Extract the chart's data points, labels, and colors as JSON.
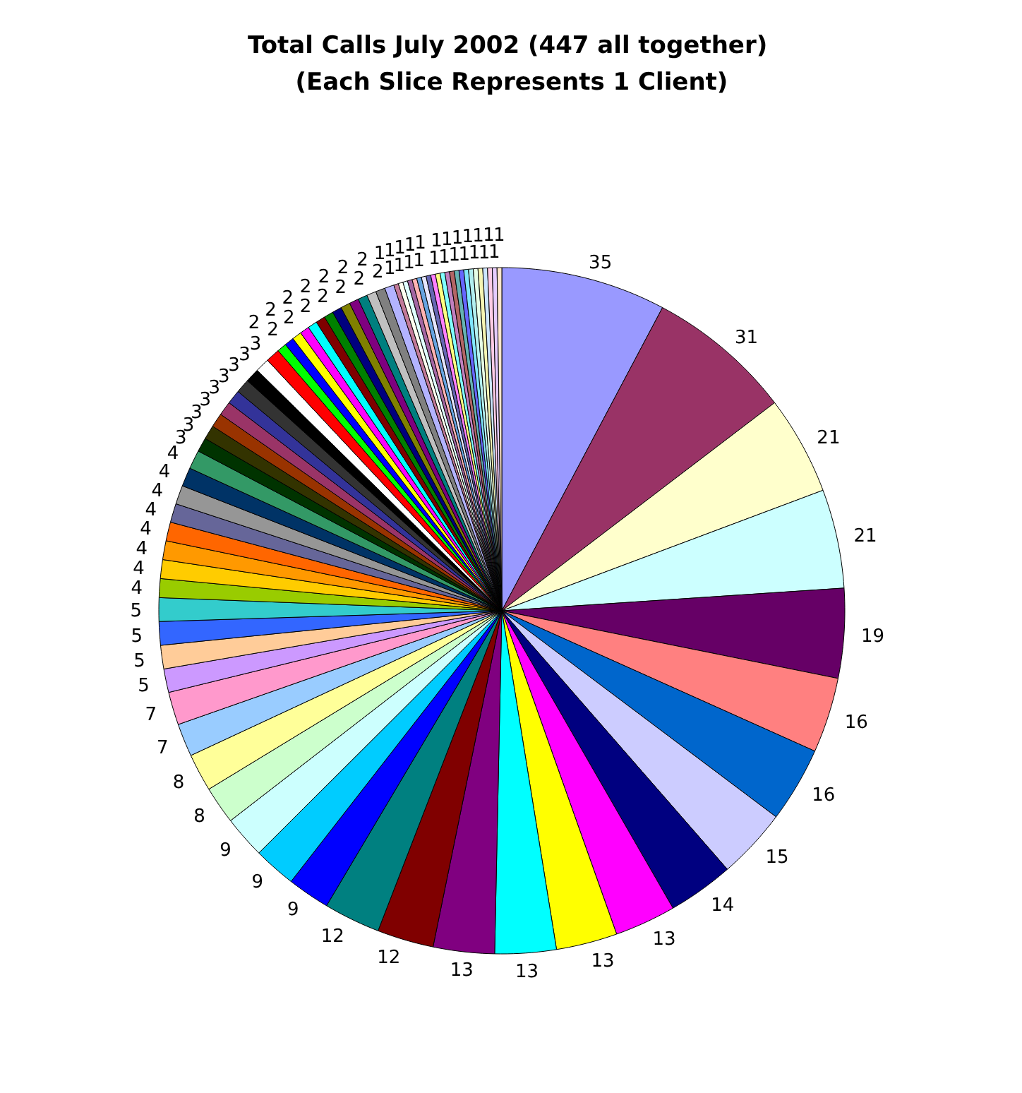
{
  "chart_data": {
    "type": "pie",
    "title": "Total Calls  July 2002 (447 all together)\n(Each Slice Represents 1 Client)",
    "categories": [
      null,
      null,
      null,
      null,
      null,
      null,
      null,
      null,
      null,
      null,
      null,
      null,
      null,
      null,
      null,
      null,
      null,
      null,
      null,
      null,
      null,
      null,
      null,
      null,
      null,
      null,
      null,
      null,
      null,
      null,
      null,
      null,
      null,
      null,
      null,
      null,
      null,
      null,
      null,
      null,
      null,
      null,
      null,
      null,
      null,
      null,
      null,
      null,
      null,
      null,
      null,
      null,
      null,
      null,
      null,
      null,
      null,
      null,
      null,
      null,
      null,
      null,
      null,
      null,
      null,
      null,
      null,
      null,
      null,
      null,
      null,
      null,
      null,
      null,
      null,
      null,
      null,
      null,
      null,
      null
    ],
    "values": [
      35,
      31,
      21,
      21,
      19,
      16,
      16,
      15,
      14,
      13,
      13,
      13,
      13,
      12,
      12,
      9,
      9,
      9,
      8,
      8,
      7,
      7,
      5,
      5,
      5,
      5,
      4,
      4,
      4,
      4,
      4,
      4,
      4,
      4,
      3,
      3,
      3,
      3,
      3,
      3,
      3,
      3,
      3,
      2,
      2,
      2,
      2,
      2,
      2,
      2,
      2,
      2,
      2,
      2,
      2,
      2,
      2,
      1,
      1,
      1,
      1,
      1,
      1,
      1,
      1,
      1,
      1,
      1,
      1,
      1,
      1,
      1,
      1,
      1,
      1,
      1,
      1,
      1,
      1,
      1
    ],
    "colors": [
      "#9999ff",
      "#993366",
      "#ffffcc",
      "#ccffff",
      "#660066",
      "#ff8080",
      "#0066cc",
      "#ccccff",
      "#000080",
      "#ff00ff",
      "#ffff00",
      "#00ffff",
      "#800080",
      "#800000",
      "#008080",
      "#0000ff",
      "#00ccff",
      "#ccfffe",
      "#ccffcc",
      "#ffff99",
      "#99ccff",
      "#ff99cc",
      "#cc99ff",
      "#ffcc99",
      "#3366ff",
      "#33cccc",
      "#99cc00",
      "#ffcc00",
      "#ff9900",
      "#ff6600",
      "#666699",
      "#969696",
      "#003366",
      "#339966",
      "#003300",
      "#333300",
      "#993300",
      "#9a3467",
      "#333399",
      "#333333",
      "#000000",
      "#ffffff",
      "#ff0000",
      "#00ff00",
      "#0000fe",
      "#fefe00",
      "#fe00fe",
      "#00fefe",
      "#7f0000",
      "#008000",
      "#00007f",
      "#808000",
      "#7f007f",
      "#007f7f",
      "#c0c0c0",
      "#808080",
      "#b3b3ff",
      "#c27a99",
      "#fffff0",
      "#e0ffff",
      "#a366a3",
      "#ffb3b3",
      "#66a3e0",
      "#e6e6ff",
      "#6666b3",
      "#ff80ff",
      "#ffff80",
      "#80ffff",
      "#c080c0",
      "#b36666",
      "#66b3b3",
      "#6666ff",
      "#80e6ff",
      "#b3f0f0",
      "#e6ffe6",
      "#f5f5b3",
      "#cce6ff",
      "#ffcce6",
      "#e6ccff",
      "#ffe6cc"
    ],
    "data_labels": true
  }
}
